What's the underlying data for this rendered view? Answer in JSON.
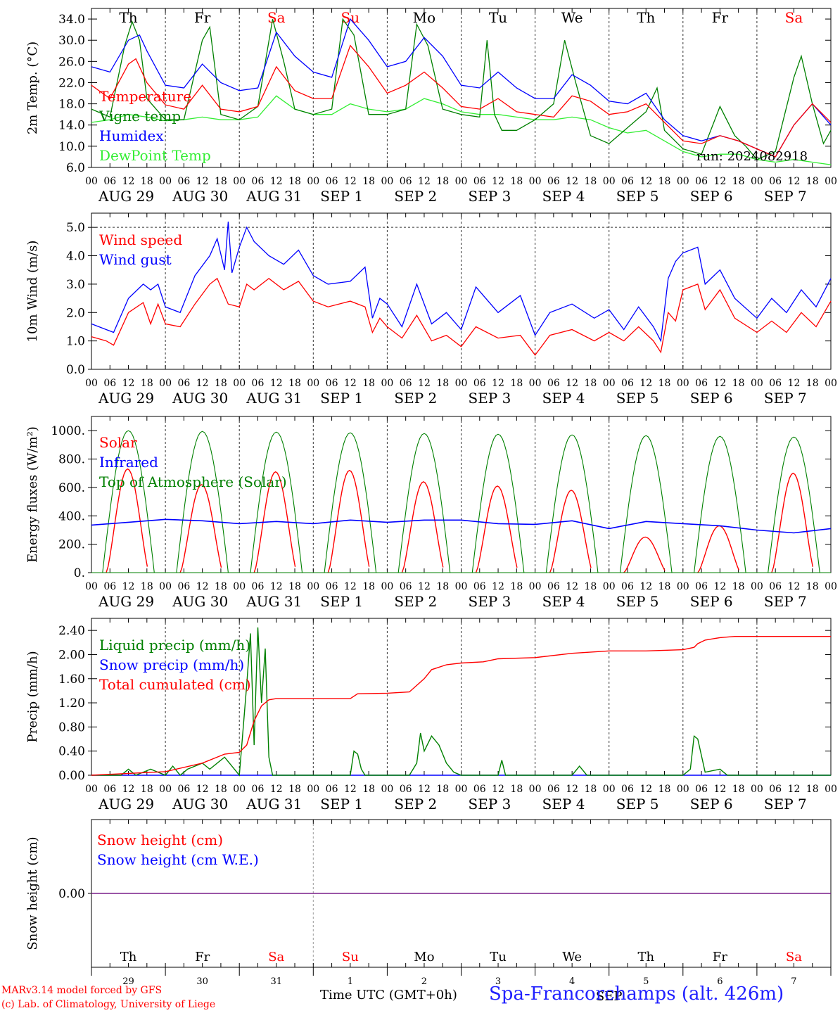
{
  "colors": {
    "red": "#ff0000",
    "green": "#008000",
    "blue": "#0000ff",
    "lightgreen": "#33ee33",
    "purple": "#7a1f8a"
  },
  "hour_ticks": [
    "00",
    "06",
    "12",
    "18"
  ],
  "date_labels": [
    "AUG 29",
    "AUG 30",
    "AUG 31",
    "SEP  1",
    "SEP  2",
    "SEP  3",
    "SEP  4",
    "SEP  5",
    "SEP  6",
    "SEP  7"
  ],
  "weekdays": [
    "Th",
    "Fr",
    "Sa",
    "Su",
    "Mo",
    "Tu",
    "We",
    "Th",
    "Fr",
    "Sa"
  ],
  "weekend_flags": [
    false,
    false,
    true,
    true,
    false,
    false,
    false,
    false,
    false,
    true
  ],
  "day_numbers": [
    "29",
    "30",
    "31",
    "1",
    "2",
    "3",
    "4",
    "5",
    "6",
    "7"
  ],
  "month_label": "SEP",
  "run_label": "run: 2024082918",
  "footer": {
    "model": "MARv3.14 model forced by GFS",
    "lab": "(c) Lab. of Climatology, University of Liege",
    "time_label": "Time UTC (GMT+0h)",
    "site": "Spa-Francorchamps (alt. 426m)"
  },
  "chart_data": [
    {
      "type": "line",
      "ylabel": "2m Temp. (°C)",
      "ylim": [
        6,
        36
      ],
      "yticks": [
        "6.0",
        "10.0",
        "14.0",
        "18.0",
        "22.0",
        "26.0",
        "30.0",
        "34.0"
      ],
      "x_unit": "day",
      "x_range": [
        0,
        10
      ],
      "legend": [
        "Temperature",
        "Vigne temp",
        "Humidex",
        "DewPoint Temp"
      ],
      "series": [
        {
          "name": "Temperature",
          "color": "red",
          "x": [
            0,
            0.25,
            0.5,
            0.6,
            0.75,
            1,
            1.25,
            1.5,
            1.75,
            2,
            2.25,
            2.5,
            2.75,
            3,
            3.25,
            3.5,
            3.75,
            4,
            4.25,
            4.5,
            4.75,
            5,
            5.25,
            5.5,
            5.75,
            6,
            6.25,
            6.5,
            6.75,
            7,
            7.25,
            7.5,
            7.75,
            8,
            8.25,
            8.5,
            8.75,
            9,
            9.25,
            9.5,
            9.75,
            10
          ],
          "y": [
            21.5,
            19,
            25.5,
            26.5,
            22,
            17.8,
            17,
            21.5,
            17,
            16.5,
            17.5,
            25,
            20.5,
            19,
            19,
            29,
            25,
            20,
            21.5,
            24,
            21,
            17.5,
            17,
            19,
            16.5,
            16,
            15.5,
            19.5,
            18.5,
            16,
            16.5,
            18,
            14.5,
            11,
            10.5,
            12,
            11,
            9.5,
            8,
            14,
            18,
            14.5
          ]
        },
        {
          "name": "Vigne temp",
          "color": "green",
          "x": [
            0,
            0.25,
            0.45,
            0.55,
            0.65,
            0.75,
            1,
            1.25,
            1.5,
            1.6,
            1.75,
            2,
            2.25,
            2.45,
            2.6,
            2.75,
            3,
            3.25,
            3.4,
            3.55,
            3.75,
            4,
            4.25,
            4.4,
            4.55,
            4.75,
            5,
            5.25,
            5.35,
            5.45,
            5.55,
            5.75,
            6,
            6.25,
            6.4,
            6.55,
            6.75,
            7,
            7.25,
            7.5,
            7.65,
            7.75,
            8,
            8.25,
            8.5,
            8.7,
            8.85,
            9,
            9.25,
            9.5,
            9.6,
            9.75,
            9.9,
            10
          ],
          "y": [
            17,
            15.5,
            29,
            33.5,
            30,
            19,
            15,
            15,
            30,
            32.5,
            16,
            15,
            17.5,
            34,
            26,
            17,
            16,
            17,
            34,
            31,
            16,
            16,
            17,
            33,
            29,
            17,
            16,
            15.5,
            30,
            16,
            13,
            13,
            15,
            18,
            30,
            22,
            12,
            10.5,
            13.5,
            16.5,
            21,
            13,
            9.5,
            8.5,
            17.5,
            12,
            10,
            7.5,
            9,
            23,
            27,
            18,
            10.5,
            13
          ]
        },
        {
          "name": "Humidex",
          "color": "blue",
          "x": [
            0,
            0.25,
            0.5,
            0.65,
            0.75,
            1,
            1.25,
            1.5,
            1.75,
            2,
            2.25,
            2.5,
            2.75,
            3,
            3.25,
            3.5,
            3.75,
            4,
            4.25,
            4.5,
            4.75,
            5,
            5.25,
            5.5,
            5.75,
            6,
            6.25,
            6.5,
            6.75,
            7,
            7.25,
            7.5,
            7.75,
            8,
            8.25,
            8.5,
            8.75,
            9,
            9.25,
            9.5,
            9.75,
            10
          ],
          "y": [
            25,
            24,
            30,
            31,
            28,
            21.5,
            21,
            25.5,
            22,
            20.5,
            21,
            31.5,
            27,
            24,
            23,
            34,
            30,
            25,
            26,
            30.5,
            27,
            21.5,
            21,
            24,
            21,
            19,
            19,
            23.5,
            21.5,
            18.5,
            18,
            20,
            15,
            12,
            11,
            12,
            11,
            9.5,
            8,
            14,
            18,
            14
          ]
        },
        {
          "name": "DewPoint Temp",
          "color": "lightgreen",
          "x": [
            0,
            0.25,
            0.5,
            0.75,
            1,
            1.25,
            1.5,
            1.75,
            2,
            2.25,
            2.5,
            2.75,
            3,
            3.25,
            3.5,
            3.75,
            4,
            4.25,
            4.5,
            4.75,
            5,
            5.25,
            5.5,
            5.75,
            6,
            6.25,
            6.5,
            6.75,
            7,
            7.25,
            7.5,
            7.75,
            8,
            8.25,
            8.5,
            8.75,
            9,
            9.25,
            9.5,
            9.75,
            10
          ],
          "y": [
            14.5,
            15,
            16,
            15.5,
            14.8,
            15,
            15.5,
            15,
            15,
            15.5,
            19.5,
            17,
            16,
            16,
            18,
            17,
            16.5,
            17,
            19,
            18,
            16.5,
            16,
            16,
            15.5,
            15,
            15,
            15.5,
            15,
            13.5,
            12.5,
            13,
            11,
            9,
            8,
            8.5,
            8.5,
            7.5,
            7,
            7.5,
            7,
            6.5
          ]
        }
      ]
    },
    {
      "type": "line",
      "ylabel": "10m Wind (m/s)",
      "ylim": [
        0,
        5.5
      ],
      "yticks": [
        "0.0",
        "1.0",
        "2.0",
        "3.0",
        "4.0",
        "5.0"
      ],
      "x_unit": "day",
      "x_range": [
        0,
        10
      ],
      "legend": [
        "Wind speed",
        "Wind gust"
      ],
      "series": [
        {
          "name": "Wind speed",
          "color": "red",
          "x": [
            0,
            0.2,
            0.3,
            0.5,
            0.7,
            0.8,
            0.9,
            1,
            1.2,
            1.4,
            1.6,
            1.7,
            1.85,
            2,
            2.1,
            2.2,
            2.4,
            2.6,
            2.8,
            3,
            3.2,
            3.5,
            3.7,
            3.8,
            3.9,
            4,
            4.2,
            4.4,
            4.6,
            4.8,
            5,
            5.2,
            5.5,
            5.8,
            6,
            6.2,
            6.5,
            6.8,
            7,
            7.2,
            7.4,
            7.6,
            7.7,
            7.8,
            7.9,
            8,
            8.2,
            8.3,
            8.5,
            8.7,
            9,
            9.2,
            9.4,
            9.6,
            9.8,
            10
          ],
          "y": [
            1.15,
            1.0,
            0.85,
            2.0,
            2.35,
            1.6,
            2.3,
            1.6,
            1.5,
            2.3,
            3.0,
            3.2,
            2.3,
            2.2,
            3.0,
            2.8,
            3.2,
            2.8,
            3.1,
            2.4,
            2.2,
            2.4,
            2.2,
            1.3,
            1.8,
            1.5,
            1.1,
            1.9,
            1.0,
            1.2,
            0.8,
            1.5,
            1.1,
            1.2,
            0.5,
            1.2,
            1.4,
            1.0,
            1.3,
            1.0,
            1.5,
            1.0,
            0.6,
            2.0,
            1.7,
            2.8,
            3.0,
            2.1,
            2.8,
            1.8,
            1.3,
            1.7,
            1.3,
            2.0,
            1.5,
            2.4
          ]
        },
        {
          "name": "Wind gust",
          "color": "blue",
          "x": [
            0,
            0.2,
            0.3,
            0.5,
            0.7,
            0.8,
            0.9,
            1,
            1.2,
            1.4,
            1.6,
            1.7,
            1.8,
            1.85,
            1.9,
            2,
            2.1,
            2.2,
            2.4,
            2.6,
            2.8,
            3,
            3.2,
            3.5,
            3.7,
            3.8,
            3.9,
            4,
            4.2,
            4.4,
            4.6,
            4.8,
            5,
            5.2,
            5.5,
            5.8,
            6,
            6.2,
            6.5,
            6.8,
            7,
            7.2,
            7.4,
            7.6,
            7.7,
            7.8,
            7.9,
            8,
            8.2,
            8.3,
            8.5,
            8.7,
            9,
            9.2,
            9.4,
            9.6,
            9.8,
            10
          ],
          "y": [
            1.6,
            1.4,
            1.3,
            2.5,
            3.0,
            2.8,
            3.0,
            2.2,
            2.0,
            3.3,
            4.0,
            4.6,
            3.5,
            5.2,
            3.4,
            4.3,
            5.0,
            4.5,
            4.0,
            3.7,
            4.2,
            3.3,
            3.0,
            3.1,
            3.6,
            1.8,
            2.5,
            2.3,
            1.5,
            3.0,
            1.6,
            2.0,
            1.4,
            2.9,
            2.0,
            2.6,
            1.2,
            2.0,
            2.3,
            1.8,
            2.1,
            1.4,
            2.2,
            1.5,
            1.0,
            3.2,
            3.8,
            4.1,
            4.3,
            3.0,
            3.5,
            2.5,
            1.8,
            2.5,
            2.0,
            2.8,
            2.2,
            3.2
          ]
        }
      ]
    },
    {
      "type": "line",
      "ylabel": "Energy fluxes (W/m²)",
      "ylim": [
        0,
        1100
      ],
      "yticks": [
        "0.",
        "200.",
        "400.",
        "600.",
        "800.",
        "1000."
      ],
      "x_unit": "day",
      "x_range": [
        0,
        10
      ],
      "legend": [
        "Solar",
        "Infrared",
        "Top of Atmosphere (Solar)"
      ],
      "series": [
        {
          "name": "Solar",
          "color": "red",
          "daily_peaks_w_m2": [
            730,
            620,
            710,
            720,
            640,
            610,
            580,
            250,
            330,
            700
          ]
        },
        {
          "name": "Infrared",
          "color": "blue",
          "x": [
            0,
            0.5,
            1,
            1.5,
            2,
            2.5,
            3,
            3.5,
            4,
            4.5,
            5,
            5.5,
            6,
            6.5,
            7,
            7.5,
            8,
            8.5,
            9,
            9.5,
            10
          ],
          "y": [
            335,
            355,
            375,
            365,
            345,
            360,
            345,
            370,
            355,
            370,
            370,
            345,
            340,
            365,
            310,
            360,
            345,
            330,
            300,
            280,
            310
          ]
        },
        {
          "name": "Top of Atmosphere (Solar)",
          "color": "green",
          "daily_peaks_w_m2": [
            1000,
            995,
            990,
            985,
            980,
            975,
            970,
            965,
            960,
            955
          ]
        }
      ]
    },
    {
      "type": "line",
      "ylabel": "Precip (mm/h)",
      "ylim": [
        0,
        2.6
      ],
      "yticks": [
        "0.00",
        "0.40",
        "0.80",
        "1.20",
        "1.60",
        "2.00",
        "2.40"
      ],
      "x_unit": "day",
      "x_range": [
        0,
        10
      ],
      "legend": [
        "Liquid precip (mm/h)",
        "Snow precip (mm/h)",
        "Total cumulated (cm)"
      ],
      "series": [
        {
          "name": "Liquid precip (mm/h)",
          "color": "green",
          "x": [
            0,
            0.4,
            0.5,
            0.6,
            0.8,
            1,
            1.1,
            1.2,
            1.3,
            1.5,
            1.6,
            1.8,
            2,
            2.1,
            2.15,
            2.2,
            2.25,
            2.3,
            2.35,
            2.4,
            2.45,
            2.5,
            3.5,
            3.55,
            3.6,
            3.65,
            3.7,
            4.3,
            4.4,
            4.45,
            4.5,
            4.6,
            4.7,
            4.8,
            4.9,
            5,
            5.5,
            5.55,
            5.6,
            6.5,
            6.6,
            6.7,
            8,
            8.1,
            8.15,
            8.2,
            8.3,
            8.5,
            8.6,
            10
          ],
          "y": [
            0,
            0,
            0.1,
            0,
            0.1,
            0,
            0.15,
            0,
            0.1,
            0.2,
            0.1,
            0.3,
            0,
            1.5,
            2.35,
            0.5,
            2.45,
            1.2,
            2.1,
            0.3,
            0,
            0,
            0,
            0.4,
            0.35,
            0.1,
            0,
            0,
            0.2,
            0.7,
            0.4,
            0.65,
            0.5,
            0.2,
            0.05,
            0,
            0,
            0.25,
            0,
            0,
            0.15,
            0,
            0,
            0.1,
            0.65,
            0.6,
            0.05,
            0.1,
            0,
            0
          ]
        },
        {
          "name": "Snow precip (mm/h)",
          "color": "blue",
          "x": [
            0,
            10
          ],
          "y": [
            0,
            0
          ]
        },
        {
          "name": "Total cumulated (cm)",
          "color": "red",
          "x": [
            0,
            0.5,
            1,
            1.5,
            1.8,
            2,
            2.1,
            2.2,
            2.3,
            2.4,
            2.5,
            3,
            3.5,
            3.6,
            4,
            4.3,
            4.5,
            4.6,
            4.8,
            5,
            5.3,
            5.5,
            6,
            6.5,
            7,
            7.5,
            8,
            8.15,
            8.2,
            8.3,
            8.5,
            8.7,
            9,
            9.5,
            10
          ],
          "y": [
            0,
            0.03,
            0.06,
            0.2,
            0.35,
            0.38,
            0.5,
            0.9,
            1.15,
            1.25,
            1.27,
            1.27,
            1.27,
            1.35,
            1.36,
            1.38,
            1.6,
            1.75,
            1.83,
            1.86,
            1.88,
            1.93,
            1.95,
            2.02,
            2.06,
            2.06,
            2.08,
            2.12,
            2.18,
            2.24,
            2.28,
            2.3,
            2.3,
            2.3,
            2.3
          ]
        }
      ]
    },
    {
      "type": "line",
      "ylabel": "Snow height (cm)",
      "ylim": [
        -1,
        1
      ],
      "yticks": [
        "0.00"
      ],
      "x_unit": "day",
      "x_range": [
        0,
        10
      ],
      "legend": [
        "Snow height (cm)",
        "Snow height (cm W.E.)"
      ],
      "series": [
        {
          "name": "Snow height (cm)",
          "color": "red",
          "x": [
            0,
            10
          ],
          "y": [
            0,
            0
          ]
        },
        {
          "name": "Snow height (cm W.E.)",
          "color": "blue",
          "x": [
            0,
            10
          ],
          "y": [
            0,
            0
          ]
        }
      ]
    }
  ]
}
